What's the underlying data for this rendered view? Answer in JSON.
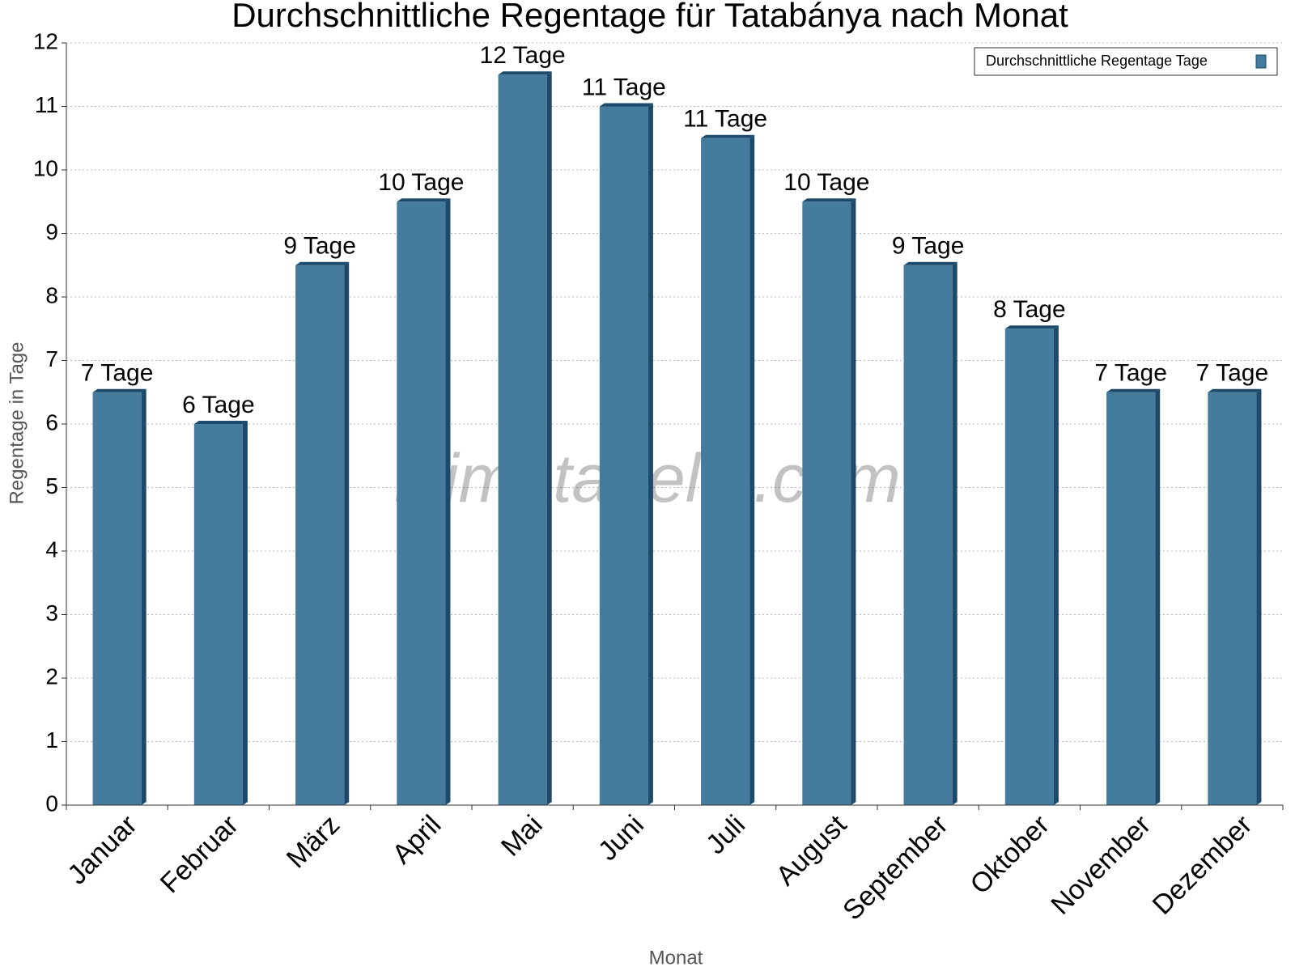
{
  "chart_data": {
    "type": "bar",
    "title": "Durchschnittliche Regentage für Tatabánya nach Monat",
    "x_label": "Monat",
    "y_label": "Regentage in Tage",
    "watermark": "klimatabelle.com",
    "categories": [
      "Januar",
      "Februar",
      "März",
      "April",
      "Mai",
      "Juni",
      "Juli",
      "August",
      "September",
      "Oktober",
      "November",
      "Dezember"
    ],
    "series": [
      {
        "name": "Durchschnittliche Regentage Tage",
        "color": "#457b9d",
        "values": [
          6.5,
          6,
          8.5,
          9.5,
          11.5,
          11,
          10.5,
          9.5,
          8.5,
          7.5,
          6.5,
          6.5
        ],
        "value_labels": [
          "7 Tage",
          "6 Tage",
          "9 Tage",
          "10 Tage",
          "12 Tage",
          "11 Tage",
          "11 Tage",
          "10 Tage",
          "9 Tage",
          "8 Tage",
          "7 Tage",
          "7 Tage"
        ]
      }
    ],
    "ylim": [
      0,
      12
    ],
    "yticks": [
      0,
      1,
      2,
      3,
      4,
      5,
      6,
      7,
      8,
      9,
      10,
      11,
      12
    ],
    "grid": true,
    "legend": "top-right"
  }
}
